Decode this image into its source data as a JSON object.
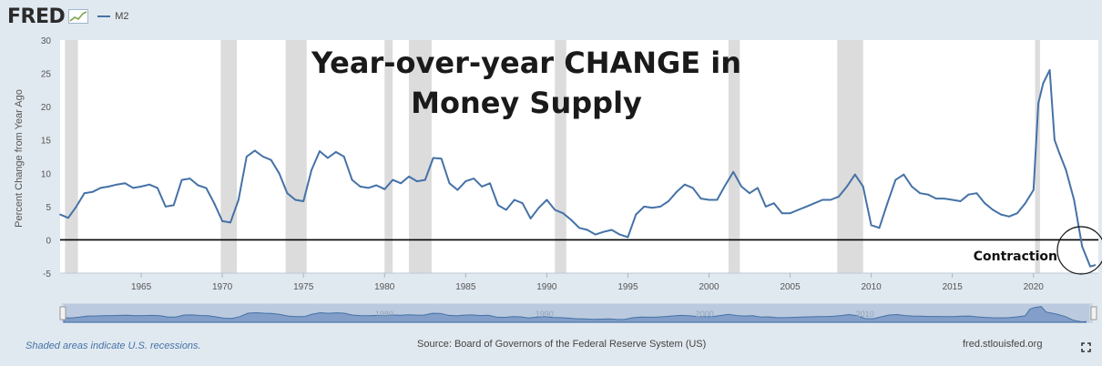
{
  "header": {
    "logo_text": "FRED",
    "logo_icon": "fred-chart-icon",
    "legend_label": "M2",
    "series_color": "#4572a7"
  },
  "annotations": {
    "title_line1": "Year-over-year CHANGE in",
    "title_line2": "Money Supply",
    "contraction_label": "Contraction"
  },
  "footer": {
    "recession_note": "Shaded areas indicate U.S. recessions.",
    "source": "Source: Board of Governors of the Federal Reserve System (US)",
    "site": "fred.stlouisfed.org",
    "fullscreen_icon": "fullscreen-icon"
  },
  "chart_data": {
    "type": "line",
    "ylabel": "Percent Change from Year Ago",
    "xlim": [
      1960,
      2024
    ],
    "ylim": [
      -5,
      30
    ],
    "y_ticks": [
      -5,
      0,
      5,
      10,
      15,
      20,
      25,
      30
    ],
    "x_ticks": [
      1965,
      1970,
      1975,
      1980,
      1985,
      1990,
      1995,
      2000,
      2005,
      2010,
      2015,
      2020
    ],
    "grid": false,
    "zero_line": true,
    "navigator_ticks": [
      "1980",
      "1990",
      "2000",
      "2010"
    ],
    "recessions": [
      [
        1960.3,
        1961.1
      ],
      [
        1969.9,
        1970.9
      ],
      [
        1973.9,
        1975.2
      ],
      [
        1980.0,
        1980.5
      ],
      [
        1981.5,
        1982.9
      ],
      [
        1990.5,
        1991.2
      ],
      [
        2001.2,
        2001.9
      ],
      [
        2007.9,
        2009.5
      ],
      [
        2020.1,
        2020.4
      ]
    ],
    "series": [
      {
        "name": "M2",
        "x": [
          1960.0,
          1960.5,
          1961.0,
          1961.5,
          1962.0,
          1962.5,
          1963.0,
          1963.5,
          1964.0,
          1964.5,
          1965.0,
          1965.5,
          1966.0,
          1966.5,
          1967.0,
          1967.5,
          1968.0,
          1968.5,
          1969.0,
          1969.5,
          1970.0,
          1970.5,
          1971.0,
          1971.5,
          1972.0,
          1972.5,
          1973.0,
          1973.5,
          1974.0,
          1974.5,
          1975.0,
          1975.5,
          1976.0,
          1976.5,
          1977.0,
          1977.5,
          1978.0,
          1978.5,
          1979.0,
          1979.5,
          1980.0,
          1980.5,
          1981.0,
          1981.5,
          1982.0,
          1982.5,
          1983.0,
          1983.5,
          1984.0,
          1984.5,
          1985.0,
          1985.5,
          1986.0,
          1986.5,
          1987.0,
          1987.5,
          1988.0,
          1988.5,
          1989.0,
          1989.5,
          1990.0,
          1990.5,
          1991.0,
          1991.5,
          1992.0,
          1992.5,
          1993.0,
          1993.5,
          1994.0,
          1994.5,
          1995.0,
          1995.5,
          1996.0,
          1996.5,
          1997.0,
          1997.5,
          1998.0,
          1998.5,
          1999.0,
          1999.5,
          2000.0,
          2000.5,
          2001.0,
          2001.5,
          2002.0,
          2002.5,
          2003.0,
          2003.5,
          2004.0,
          2004.5,
          2005.0,
          2005.5,
          2006.0,
          2006.5,
          2007.0,
          2007.5,
          2008.0,
          2008.5,
          2009.0,
          2009.5,
          2010.0,
          2010.5,
          2011.0,
          2011.5,
          2012.0,
          2012.5,
          2013.0,
          2013.5,
          2014.0,
          2014.5,
          2015.0,
          2015.5,
          2016.0,
          2016.5,
          2017.0,
          2017.5,
          2018.0,
          2018.5,
          2019.0,
          2019.5,
          2020.0,
          2020.3,
          2020.6,
          2021.0,
          2021.3,
          2021.6,
          2022.0,
          2022.5,
          2023.0,
          2023.5,
          2023.8
        ],
        "values": [
          3.8,
          3.3,
          5.0,
          7.0,
          7.2,
          7.8,
          8.0,
          8.3,
          8.5,
          7.8,
          8.0,
          8.3,
          7.8,
          5.0,
          5.2,
          9.0,
          9.2,
          8.2,
          7.8,
          5.5,
          2.8,
          2.6,
          6.0,
          12.5,
          13.4,
          12.5,
          12.0,
          10.0,
          7.0,
          6.0,
          5.8,
          10.5,
          13.3,
          12.3,
          13.2,
          12.5,
          9.0,
          8.0,
          7.8,
          8.2,
          7.6,
          9.0,
          8.5,
          9.5,
          8.8,
          9.0,
          12.3,
          12.2,
          8.5,
          7.5,
          8.8,
          9.2,
          8.0,
          8.5,
          5.2,
          4.5,
          6.0,
          5.5,
          3.2,
          4.8,
          6.0,
          4.5,
          4.0,
          3.0,
          1.8,
          1.5,
          0.8,
          1.2,
          1.5,
          0.8,
          0.4,
          3.8,
          5.0,
          4.8,
          5.0,
          5.8,
          7.2,
          8.3,
          7.8,
          6.2,
          6.0,
          6.0,
          8.2,
          10.2,
          8.0,
          7.0,
          7.8,
          5.0,
          5.5,
          4.0,
          4.0,
          4.5,
          5.0,
          5.5,
          6.0,
          6.0,
          6.5,
          8.0,
          9.8,
          8.0,
          2.2,
          1.8,
          5.5,
          9.0,
          9.8,
          8.0,
          7.0,
          6.8,
          6.2,
          6.2,
          6.0,
          5.8,
          6.8,
          7.0,
          5.5,
          4.5,
          3.8,
          3.5,
          4.0,
          5.5,
          7.5,
          20.5,
          23.5,
          25.5,
          15.0,
          13.0,
          10.5,
          6.0,
          -1.0,
          -4.0,
          -3.8
        ]
      }
    ]
  }
}
